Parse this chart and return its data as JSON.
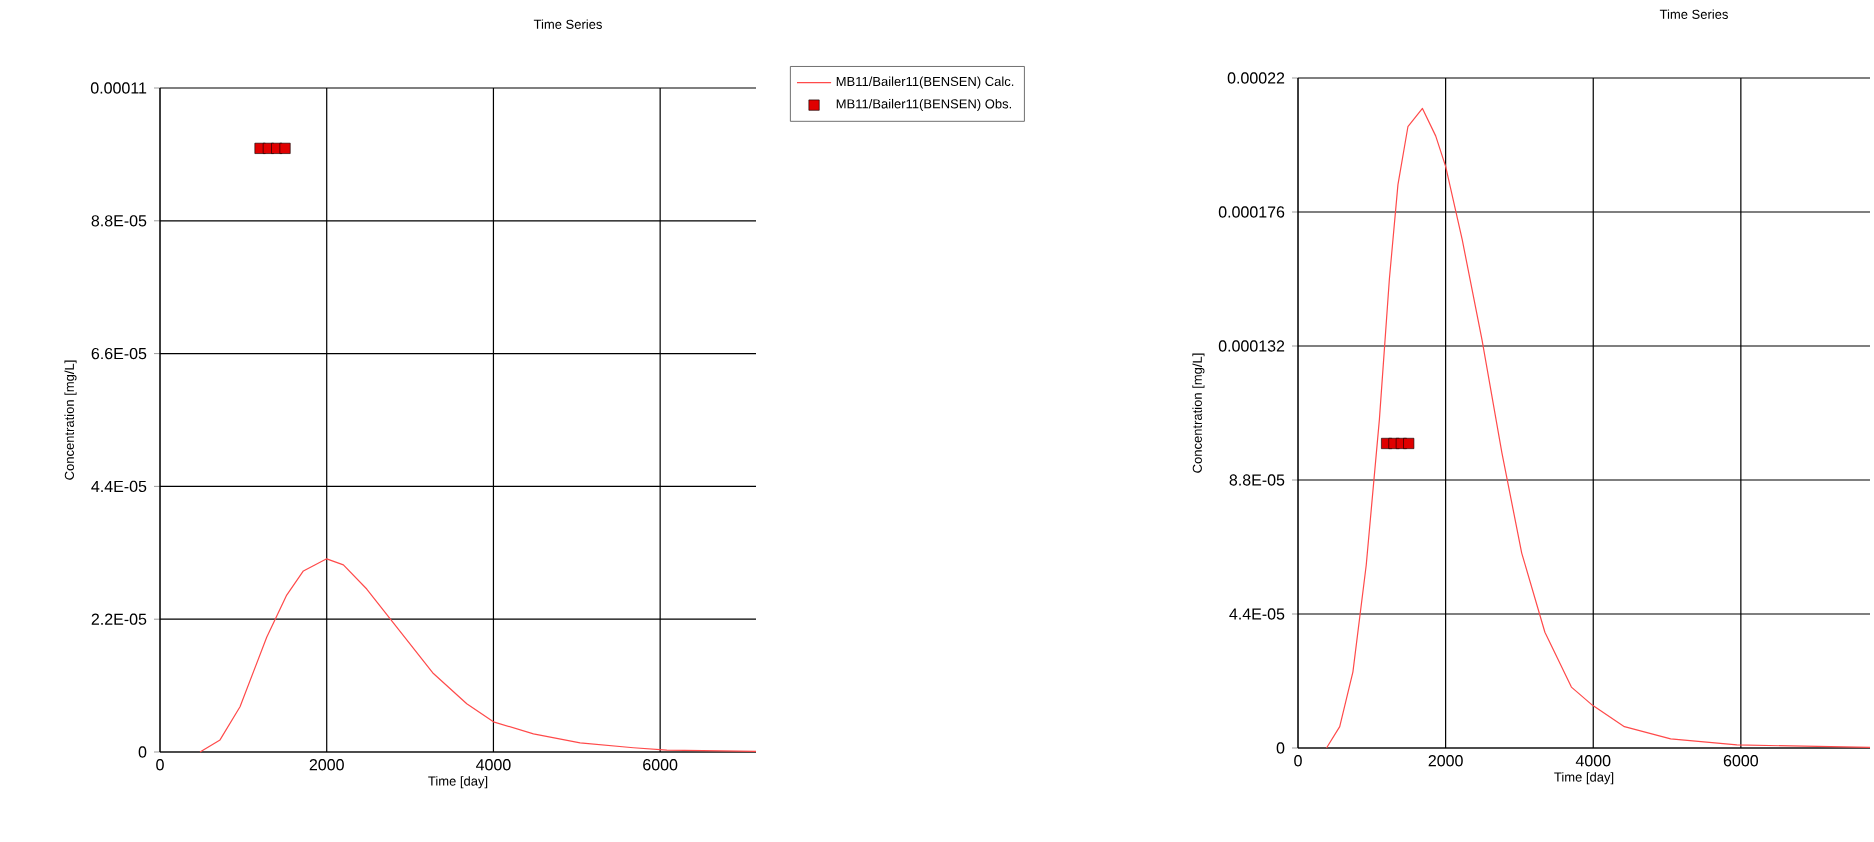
{
  "chart_data": [
    {
      "type": "line",
      "title": "Time Series",
      "xlabel": "Time [day]",
      "ylabel": "Concentration [mg/L]",
      "xlim": [
        0,
        7150
      ],
      "ylim": [
        0,
        0.00011
      ],
      "xticks": [
        0,
        2000,
        4000,
        6000
      ],
      "yticks": [
        0,
        {
          "value": 2.2e-05,
          "label": "2.2E-05"
        },
        {
          "value": 4.4e-05,
          "label": "4.4E-05"
        },
        {
          "value": 6.6e-05,
          "label": "6.6E-05"
        },
        {
          "value": 8.8e-05,
          "label": "8.8E-05"
        },
        {
          "value": 0.00011,
          "label": "0.00011"
        }
      ],
      "grid": true,
      "legend": "right",
      "series": [
        {
          "name": "MB11/Bailer11(BENSEN) Calc.",
          "color": "#ff4a4a",
          "x": [
            480,
            720,
            960,
            1280,
            1520,
            1720,
            2000,
            2200,
            2480,
            2880,
            3280,
            3680,
            4000,
            4480,
            5040,
            5680,
            6080,
            7150
          ],
          "values": [
            0,
            2e-06,
            7.5e-06,
            1.9e-05,
            2.6e-05,
            3e-05,
            3.2e-05,
            3.1e-05,
            2.7e-05,
            2e-05,
            1.3e-05,
            8e-06,
            5e-06,
            3e-06,
            1.5e-06,
            7e-07,
            3e-07,
            1e-07
          ]
        },
        {
          "name": "MB11/Bailer11(BENSEN) Obs.",
          "type": "scatter",
          "marker": "square",
          "color": "#e00000",
          "x": [
            1200,
            1300,
            1400,
            1500
          ],
          "values": [
            0.0001,
            0.0001,
            0.0001,
            0.0001
          ]
        }
      ]
    },
    {
      "type": "line",
      "title": "Time Series",
      "xlabel": "Time [day]",
      "ylabel": "Concentration [mg/L]",
      "xlim": [
        0,
        7750
      ],
      "ylim": [
        0,
        0.00022
      ],
      "xticks": [
        0,
        2000,
        4000,
        6000
      ],
      "yticks": [
        0,
        {
          "value": 4.4e-05,
          "label": "4.4E-05"
        },
        {
          "value": 8.8e-05,
          "label": "8.8E-05"
        },
        {
          "value": 0.000132,
          "label": "0.000132"
        },
        {
          "value": 0.000176,
          "label": "0.000176"
        },
        {
          "value": 0.00022,
          "label": "0.00022"
        }
      ],
      "grid": true,
      "series": [
        {
          "color": "#ff4a4a",
          "x": [
            386,
            565,
            744,
            924,
            1103,
            1238,
            1354,
            1489,
            1686,
            1865,
            2000,
            2224,
            2493,
            2762,
            3031,
            3345,
            3704,
            3991,
            4422,
            5049,
            5946,
            7750
          ],
          "values": [
            0,
            7e-06,
            2.5e-05,
            6e-05,
            0.000108,
            0.000154,
            0.000185,
            0.000204,
            0.00021,
            0.000201,
            0.000191,
            0.000167,
            0.000134,
            9.7e-05,
            6.4e-05,
            3.8e-05,
            2e-05,
            1.4e-05,
            7e-06,
            3e-06,
            1e-06,
            2e-07
          ]
        },
        {
          "type": "scatter",
          "marker": "square",
          "color": "#e00000",
          "x": [
            1200,
            1300,
            1400,
            1500
          ],
          "values": [
            0.0001,
            0.0001,
            0.0001,
            0.0001
          ]
        }
      ]
    }
  ]
}
